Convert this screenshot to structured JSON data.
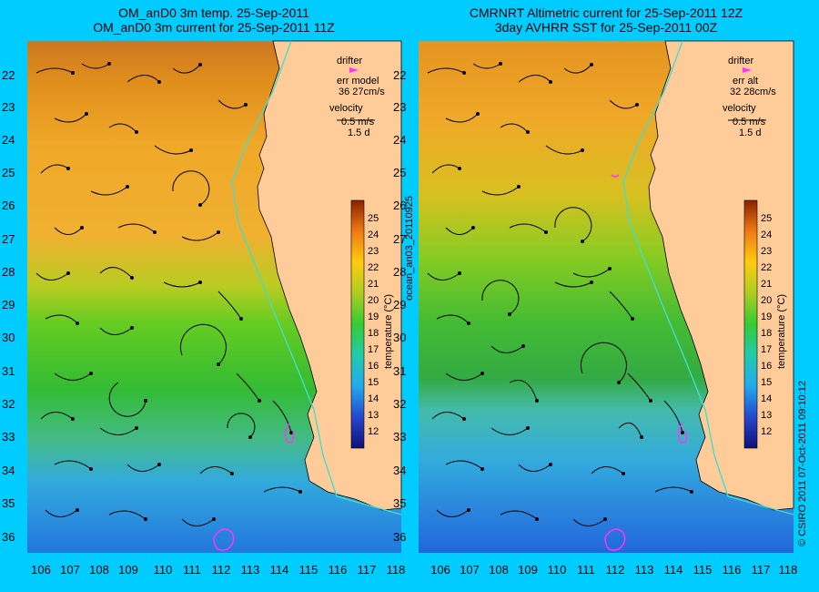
{
  "panels": [
    {
      "title_line1": "OM_anD0 3m temp. 25-Sep-2011",
      "title_line2": "OM_anD0 3m current for 25-Sep-2011 11Z",
      "legend": {
        "drifter": "drifter",
        "err_line1": "err model",
        "err_line2": "36 27cm/s",
        "velocity": "velocity",
        "speed": "0.5 m/s",
        "duration": "1.5 d"
      }
    },
    {
      "title_line1": "CMRNRT Altimetric current for 25-Sep-2011 12Z",
      "title_line2": "3day AVHRR SST for 25-Sep-2011 00Z",
      "legend": {
        "drifter": "drifter",
        "err_line1": "err alt",
        "err_line2": "32 28cm/s",
        "velocity": "velocity",
        "speed": "0.5 m/s",
        "duration": "1.5 d"
      }
    }
  ],
  "axes": {
    "latitudes": [
      "22",
      "23",
      "24",
      "25",
      "26",
      "27",
      "28",
      "29",
      "30",
      "31",
      "32",
      "33",
      "34",
      "35",
      "36"
    ],
    "longitudes": [
      "106",
      "107",
      "108",
      "109",
      "110",
      "111",
      "112",
      "113",
      "114",
      "115",
      "116",
      "117",
      "118"
    ]
  },
  "colorbar": {
    "label": "temperature (°C)",
    "ticks": [
      "12",
      "13",
      "14",
      "15",
      "16",
      "17",
      "18",
      "19",
      "20",
      "21",
      "22",
      "23",
      "24",
      "25"
    ]
  },
  "side_labels": {
    "product_id": "ocean_an03_20110925",
    "copyright": "© CSIRO 2011   07-Oct-2011 09:10:12"
  },
  "colors": {
    "background": "#00ccff",
    "land": "#ffcc99",
    "shelf_line": "#44ddcc",
    "drifter": "#ff33ff"
  }
}
